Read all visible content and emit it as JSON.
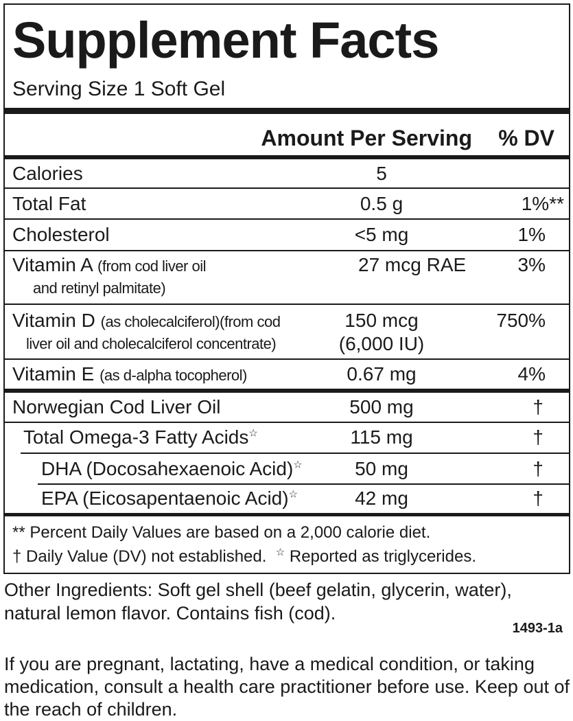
{
  "header": {
    "title": "Supplement Facts",
    "serving_size": "Serving Size 1 Soft Gel"
  },
  "table": {
    "columns": [
      "Amount Per Serving",
      "% DV"
    ],
    "nutrients": [
      {
        "name": "Calories",
        "amount": [
          "5"
        ]
      },
      {
        "name": "Total Fat",
        "amount": [
          "0.5 g"
        ],
        "dv": "1%**"
      },
      {
        "name": "Cholesterol",
        "amount": [
          "<5 mg"
        ],
        "dv": "1%"
      },
      {
        "name": "Vitamin A",
        "note": [
          "(from cod liver oil",
          "and retinyl palmitate)"
        ],
        "amount": [
          "27 mcg RAE"
        ],
        "dv": "3%"
      },
      {
        "name": "Vitamin D",
        "note": [
          "(as cholecalciferol)(from cod",
          "liver oil and cholecalciferol concentrate)"
        ],
        "amount": [
          "150 mcg",
          "(6,000 IU)"
        ],
        "dv": "750%"
      },
      {
        "name": "Vitamin E",
        "note": [
          "(as d-alpha tocopherol)"
        ],
        "amount": [
          "0.67 mg"
        ],
        "dv": "4%"
      }
    ],
    "ingredients": [
      {
        "name": "Norwegian Cod Liver Oil",
        "amount": "500 mg",
        "dv": "†"
      },
      {
        "name": "Total Omega-3 Fatty Acids",
        "mark": "☆",
        "amount": "115 mg",
        "dv": "†"
      },
      {
        "name": "DHA (Docosahexaenoic Acid)",
        "mark": "☆",
        "amount": "50 mg",
        "dv": "†"
      },
      {
        "name": "EPA (Eicosapentaenoic Acid)",
        "mark": "☆",
        "amount": "42 mg",
        "dv": "†"
      }
    ],
    "footnotes": [
      "** Percent Daily Values are based on a 2,000 calorie diet.",
      "† Daily Value (DV) not established.",
      "☆",
      "Reported as triglycerides."
    ]
  },
  "other_ingredients": "Other Ingredients:  Soft gel shell (beef gelatin, glycerin, water), natural lemon flavor.  Contains fish (cod).",
  "code": "1493-1a",
  "warning": "If you are pregnant, lactating, have a medical condition, or taking medication, consult a health care practitioner before use. Keep out of the reach of children."
}
